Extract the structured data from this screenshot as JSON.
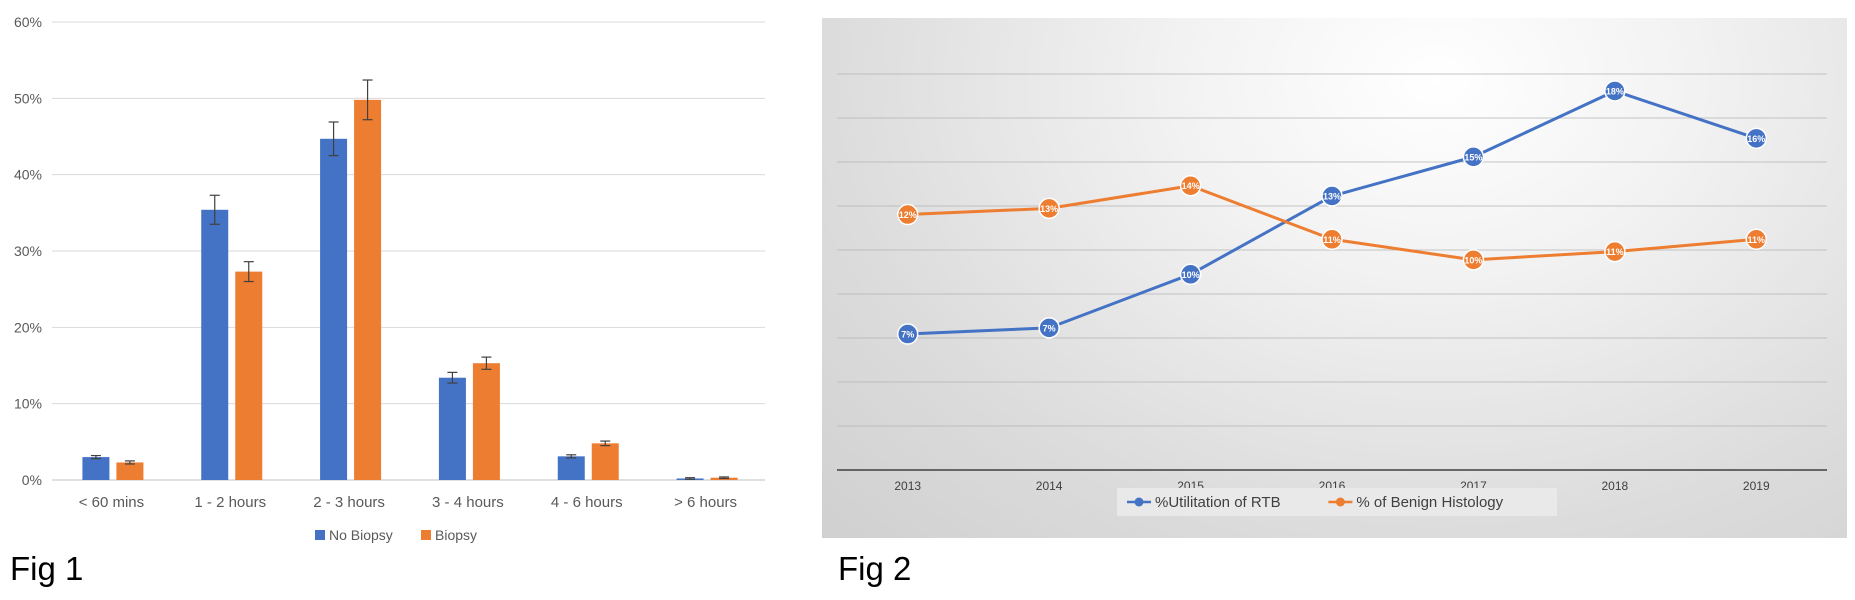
{
  "figures": {
    "fig1_label": "Fig 1",
    "fig2_label": "Fig 2"
  },
  "colors": {
    "blue": "#4472c4",
    "orange": "#ed7d31"
  },
  "chart_data": [
    {
      "type": "bar",
      "title": "",
      "xlabel": "",
      "ylabel": "",
      "categories": [
        "< 60 mins",
        "1 - 2 hours",
        "2 - 3 hours",
        "3 - 4 hours",
        "4 - 6 hours",
        "> 6 hours"
      ],
      "ylim": [
        0,
        0.6
      ],
      "yticks": [
        0,
        0.1,
        0.2,
        0.3,
        0.4,
        0.5,
        0.6
      ],
      "ytick_labels": [
        "0%",
        "10%",
        "20%",
        "30%",
        "40%",
        "50%",
        "60%"
      ],
      "series": [
        {
          "name": "No Biopsy",
          "color": "#4472c4",
          "values": [
            0.03,
            0.354,
            0.447,
            0.134,
            0.031,
            0.002
          ],
          "errors": [
            0.002,
            0.019,
            0.022,
            0.007,
            0.002,
            0.001
          ]
        },
        {
          "name": "Biopsy",
          "color": "#ed7d31",
          "values": [
            0.023,
            0.273,
            0.498,
            0.153,
            0.048,
            0.003
          ],
          "errors": [
            0.002,
            0.013,
            0.026,
            0.008,
            0.003,
            0.001
          ]
        }
      ],
      "legend_position": "bottom",
      "grid": true
    },
    {
      "type": "line",
      "title": "",
      "xlabel": "",
      "ylabel": "",
      "x": [
        "2013",
        "2014",
        "2015",
        "2016",
        "2017",
        "2018",
        "2019"
      ],
      "ylim": [
        0,
        0.2
      ],
      "grid": true,
      "legend_position": "bottom",
      "series": [
        {
          "name": "%Utilitation of RTB",
          "color": "#4472c4",
          "values": [
            0.066,
            0.069,
            0.095,
            0.133,
            0.152,
            0.184,
            0.161
          ],
          "labels": [
            "7%",
            "7%",
            "10%",
            "13%",
            "15%",
            "18%",
            "16%"
          ]
        },
        {
          "name": "% of Benign Histology",
          "color": "#ed7d31",
          "values": [
            0.124,
            0.127,
            0.138,
            0.112,
            0.102,
            0.106,
            0.112
          ],
          "labels": [
            "12%",
            "13%",
            "14%",
            "11%",
            "10%",
            "11%",
            "11%"
          ]
        }
      ]
    }
  ]
}
